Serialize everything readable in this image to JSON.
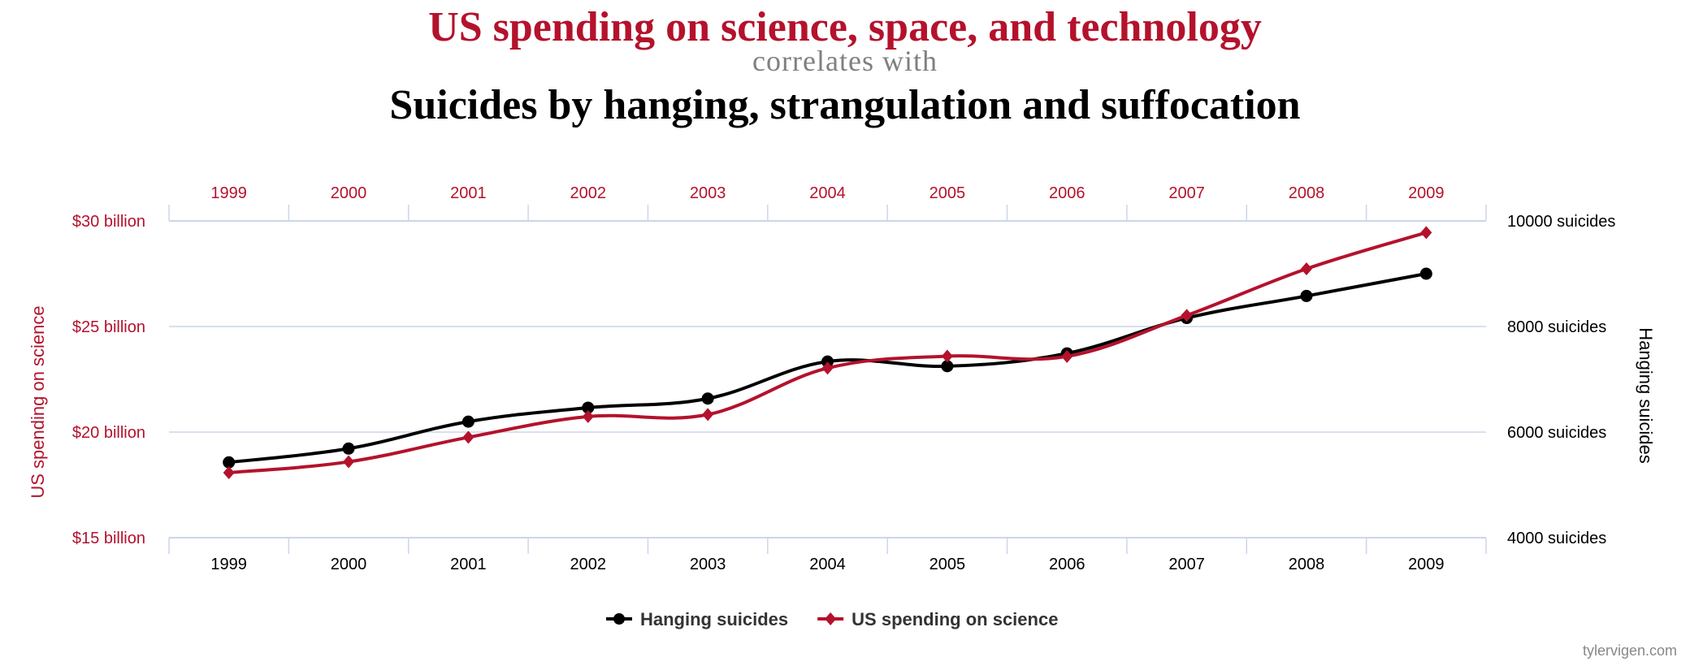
{
  "header": {
    "title": "US spending on science, space, and technology",
    "connector": "correlates with",
    "subtitle": "Suicides by hanging, strangulation and suffocation"
  },
  "chart_data": {
    "type": "line",
    "categories": [
      "1999",
      "2000",
      "2001",
      "2002",
      "2003",
      "2004",
      "2005",
      "2006",
      "2007",
      "2008",
      "2009"
    ],
    "series": [
      {
        "name": "Hanging suicides",
        "axis": "right",
        "color": "#000000",
        "marker": "circle",
        "values": [
          5427,
          5688,
          6198,
          6462,
          6635,
          7336,
          7248,
          7491,
          8161,
          8578,
          9000
        ]
      },
      {
        "name": "US spending on science",
        "axis": "left",
        "color": "#b4122c",
        "marker": "diamond",
        "values": [
          18.079,
          18.594,
          19.753,
          20.734,
          20.831,
          23.029,
          23.597,
          23.584,
          25.525,
          27.731,
          29.449
        ]
      }
    ],
    "left_axis": {
      "label": "US spending on science",
      "range": [
        15,
        30
      ],
      "ticks": [
        {
          "value": 30,
          "label": "$30 billion"
        },
        {
          "value": 25,
          "label": "$25 billion"
        },
        {
          "value": 20,
          "label": "$20 billion"
        },
        {
          "value": 15,
          "label": "$15 billion"
        }
      ]
    },
    "right_axis": {
      "label": "Hanging suicides",
      "range": [
        4000,
        10000
      ],
      "ticks": [
        {
          "value": 10000,
          "label": "10000 suicides"
        },
        {
          "value": 8000,
          "label": "8000 suicides"
        },
        {
          "value": 6000,
          "label": "6000 suicides"
        },
        {
          "value": 4000,
          "label": "4000 suicides"
        }
      ]
    },
    "grid": true,
    "legend": "bottom-center",
    "colors": {
      "accent": "#b4122c",
      "grid": "#ccd6eb"
    }
  },
  "footer": {
    "credit": "tylervigen.com"
  }
}
